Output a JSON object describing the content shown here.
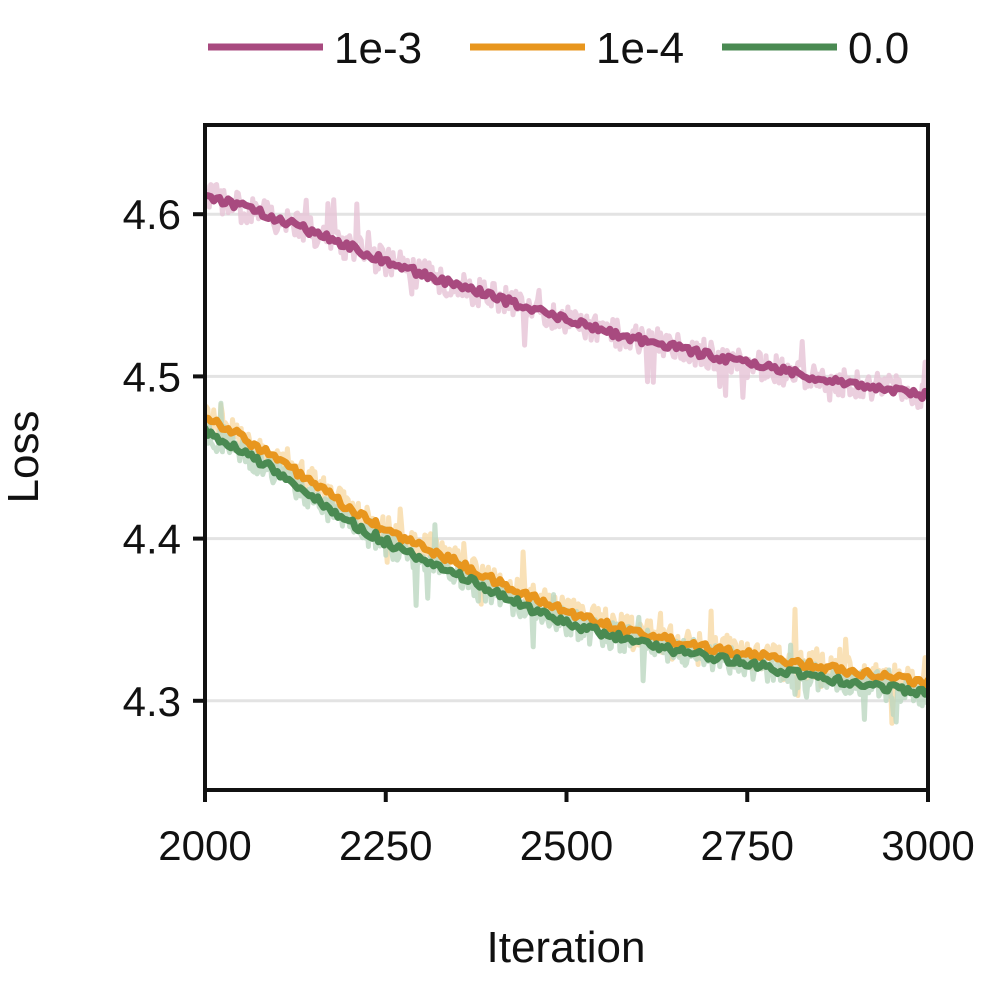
{
  "chart_data": {
    "type": "line",
    "title": "",
    "xlabel": "Iteration",
    "ylabel": "Loss",
    "xlim": [
      2000,
      3000
    ],
    "ylim": [
      4.245,
      4.655
    ],
    "xticks": [
      2000,
      2250,
      2500,
      2750,
      3000
    ],
    "xtick_labels": [
      "2000",
      "2250",
      "2500",
      "2750",
      "3000"
    ],
    "yticks": [
      4.3,
      4.4,
      4.5,
      4.6
    ],
    "ytick_labels": [
      "4.3",
      "4.4",
      "4.5",
      "4.6"
    ],
    "grid": "horizontal",
    "legend_position": "top",
    "series": [
      {
        "name": "1e-3",
        "color": "#a84a7f",
        "raw_color": "#e6c3d6",
        "x": [
          2000,
          2050,
          2100,
          2150,
          2200,
          2250,
          2300,
          2350,
          2400,
          2450,
          2500,
          2550,
          2600,
          2650,
          2700,
          2750,
          2800,
          2850,
          2900,
          2950,
          3000
        ],
        "values": [
          4.612,
          4.605,
          4.597,
          4.589,
          4.58,
          4.571,
          4.563,
          4.556,
          4.549,
          4.542,
          4.535,
          4.528,
          4.523,
          4.518,
          4.513,
          4.508,
          4.504,
          4.499,
          4.495,
          4.492,
          4.488
        ]
      },
      {
        "name": "1e-4",
        "color": "#e8961e",
        "raw_color": "#f8d9a5",
        "x": [
          2000,
          2050,
          2100,
          2150,
          2200,
          2250,
          2300,
          2350,
          2400,
          2450,
          2500,
          2550,
          2600,
          2650,
          2700,
          2750,
          2800,
          2850,
          2900,
          2950,
          3000
        ],
        "values": [
          4.476,
          4.463,
          4.449,
          4.434,
          4.418,
          4.405,
          4.395,
          4.385,
          4.374,
          4.364,
          4.355,
          4.348,
          4.342,
          4.337,
          4.333,
          4.329,
          4.325,
          4.321,
          4.318,
          4.315,
          4.311
        ]
      },
      {
        "name": "0.0",
        "color": "#4a8a52",
        "raw_color": "#bcd7c1",
        "x": [
          2000,
          2050,
          2100,
          2150,
          2200,
          2250,
          2300,
          2350,
          2400,
          2450,
          2500,
          2550,
          2600,
          2650,
          2700,
          2750,
          2800,
          2850,
          2900,
          2950,
          3000
        ],
        "values": [
          4.466,
          4.455,
          4.441,
          4.426,
          4.41,
          4.398,
          4.388,
          4.378,
          4.367,
          4.357,
          4.348,
          4.342,
          4.336,
          4.331,
          4.327,
          4.323,
          4.318,
          4.314,
          4.311,
          4.308,
          4.304
        ]
      }
    ]
  }
}
